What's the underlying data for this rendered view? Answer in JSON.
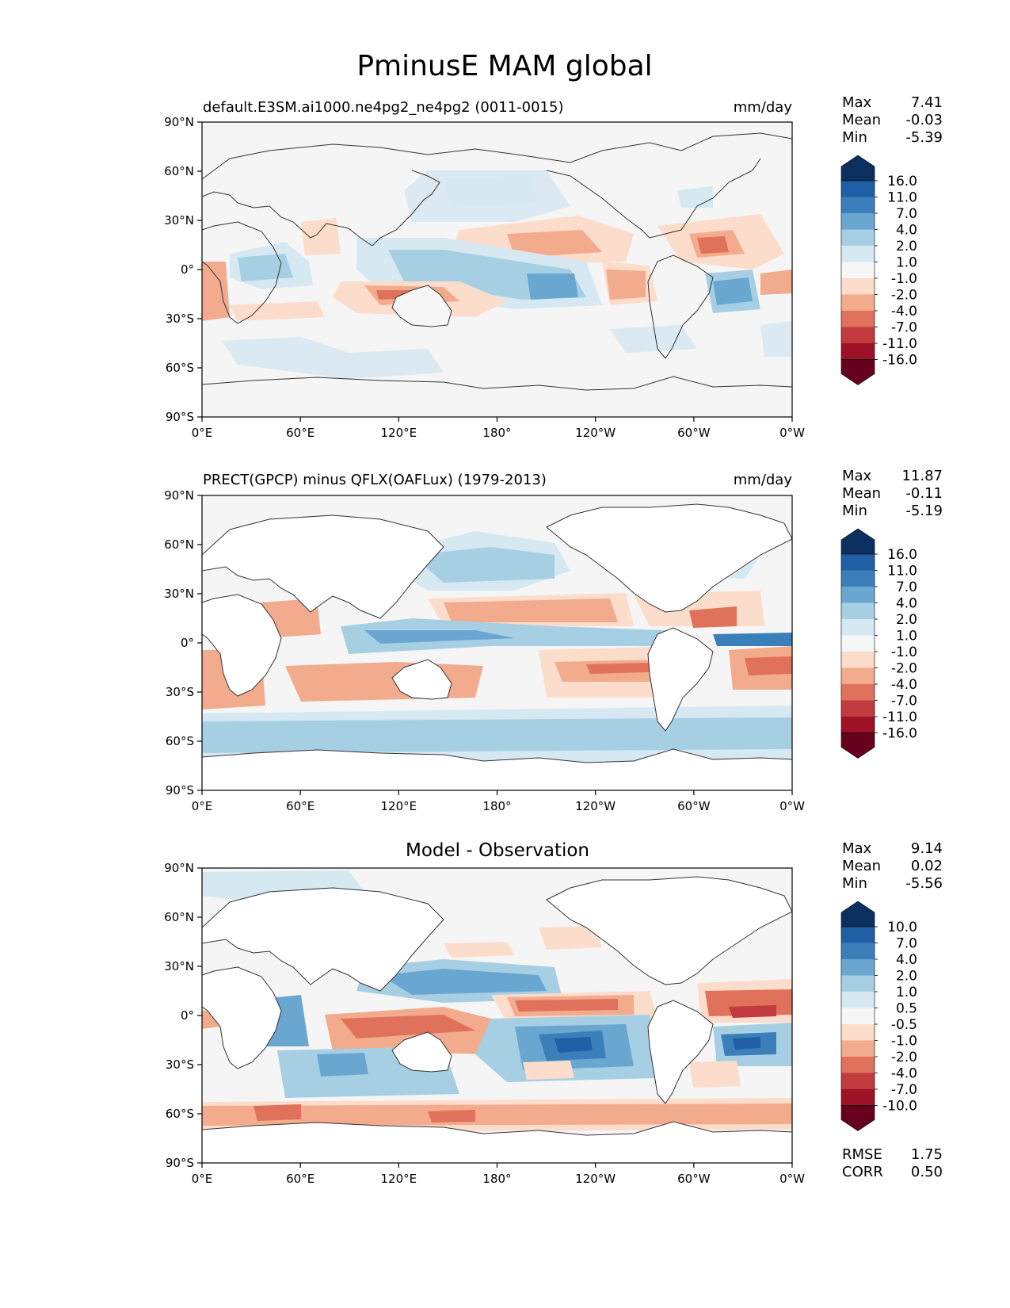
{
  "title": "PminusE MAM global",
  "x_ticks": [
    "0°E",
    "60°E",
    "120°E",
    "180°",
    "120°W",
    "60°W",
    "0°W"
  ],
  "y_ticks": [
    "90°N",
    "60°N",
    "30°N",
    "0°",
    "30°S",
    "60°S",
    "90°S"
  ],
  "panels": [
    {
      "left_title": "default.E3SM.ai1000.ne4pg2_ne4pg2 (0011-0015)",
      "center_title": "",
      "units": "mm/day",
      "stats": [
        {
          "label": "Max",
          "value": "7.41"
        },
        {
          "label": "Mean",
          "value": "-0.03"
        },
        {
          "label": "Min",
          "value": "-5.39"
        }
      ],
      "colorbar_levels": [
        "16.0",
        "11.0",
        "7.0",
        "4.0",
        "2.0",
        "1.0",
        "-1.0",
        "-2.0",
        "-4.0",
        "-7.0",
        "-11.0",
        "-16.0"
      ],
      "extra_stats": []
    },
    {
      "left_title": "PRECT(GPCP) minus QFLX(OAFLux) (1979-2013)",
      "center_title": "",
      "units": "mm/day",
      "stats": [
        {
          "label": "Max",
          "value": "11.87"
        },
        {
          "label": "Mean",
          "value": "-0.11"
        },
        {
          "label": "Min",
          "value": "-5.19"
        }
      ],
      "colorbar_levels": [
        "16.0",
        "11.0",
        "7.0",
        "4.0",
        "2.0",
        "1.0",
        "-1.0",
        "-2.0",
        "-4.0",
        "-7.0",
        "-11.0",
        "-16.0"
      ],
      "extra_stats": []
    },
    {
      "left_title": "",
      "center_title": "Model - Observation",
      "units": "",
      "stats": [
        {
          "label": "Max",
          "value": "9.14"
        },
        {
          "label": "Mean",
          "value": "0.02"
        },
        {
          "label": "Min",
          "value": "-5.56"
        }
      ],
      "colorbar_levels": [
        "10.0",
        "7.0",
        "4.0",
        "2.0",
        "1.0",
        "0.5",
        "-0.5",
        "-1.0",
        "-2.0",
        "-4.0",
        "-7.0",
        "-10.0"
      ],
      "extra_stats": [
        {
          "label": "RMSE",
          "value": "1.75"
        },
        {
          "label": "CORR",
          "value": "0.50"
        }
      ]
    }
  ],
  "colors": {
    "colorbar": [
      "#0b305f",
      "#1f5fa5",
      "#3a7fba",
      "#6aa7d0",
      "#a7cfe4",
      "#d6e8f2",
      "#f6f6f6",
      "#fcdcca",
      "#f2ab8d",
      "#e0715a",
      "#c13b3e",
      "#9e1127",
      "#67001f"
    ],
    "ocean_background": "#f5f5f5",
    "land": "#ffffff",
    "coastline": "#333333"
  }
}
